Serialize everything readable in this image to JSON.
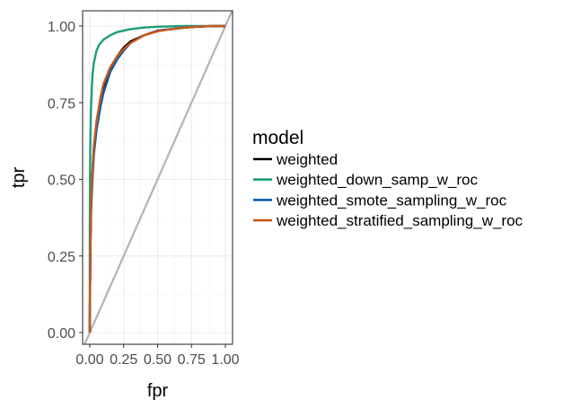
{
  "chart_data": {
    "type": "line",
    "xlabel": "fpr",
    "ylabel": "tpr",
    "xlim": [
      0,
      1
    ],
    "ylim": [
      0,
      1
    ],
    "x_ticks": [
      0,
      0.25,
      0.5,
      0.75,
      1
    ],
    "x_tick_labels": [
      "0.00",
      "0.25",
      "0.50",
      "0.75",
      "1.00"
    ],
    "y_ticks": [
      0,
      0.25,
      0.5,
      0.75,
      1
    ],
    "y_tick_labels": [
      "0.00",
      "0.25",
      "0.50",
      "0.75",
      "1.00"
    ],
    "grid": true,
    "legend": {
      "title": "model",
      "position": "right"
    },
    "reference_line": {
      "x": [
        0,
        1
      ],
      "y": [
        0,
        1
      ],
      "color": "#b3b3b3"
    },
    "series": [
      {
        "name": "weighted",
        "color": "#000000",
        "x": [
          0,
          0,
          0.005,
          0.01,
          0.02,
          0.03,
          0.05,
          0.08,
          0.1,
          0.15,
          0.2,
          0.25,
          0.3,
          0.4,
          0.5,
          0.6,
          0.7,
          0.8,
          0.9,
          1
        ],
        "y": [
          0,
          0.05,
          0.3,
          0.42,
          0.52,
          0.6,
          0.68,
          0.76,
          0.8,
          0.86,
          0.9,
          0.93,
          0.95,
          0.97,
          0.985,
          0.99,
          0.995,
          0.998,
          1,
          1
        ]
      },
      {
        "name": "weighted_down_samp_w_roc",
        "color": "#1b9e77",
        "x": [
          0,
          0,
          0.003,
          0.008,
          0.015,
          0.02,
          0.03,
          0.05,
          0.07,
          0.1,
          0.15,
          0.2,
          0.3,
          0.4,
          0.5,
          0.7,
          1
        ],
        "y": [
          0,
          0.35,
          0.6,
          0.72,
          0.8,
          0.84,
          0.88,
          0.92,
          0.94,
          0.955,
          0.97,
          0.98,
          0.99,
          0.995,
          0.998,
          1,
          1
        ]
      },
      {
        "name": "weighted_smote_sampling_w_roc",
        "color": "#0a5ca8",
        "x": [
          0,
          0,
          0.005,
          0.01,
          0.02,
          0.03,
          0.05,
          0.08,
          0.1,
          0.15,
          0.2,
          0.25,
          0.3,
          0.4,
          0.5,
          0.6,
          0.7,
          0.8,
          0.9,
          1
        ],
        "y": [
          0,
          0.05,
          0.28,
          0.4,
          0.5,
          0.58,
          0.66,
          0.74,
          0.78,
          0.85,
          0.89,
          0.92,
          0.945,
          0.97,
          0.985,
          0.99,
          0.995,
          0.998,
          1,
          1
        ]
      },
      {
        "name": "weighted_stratified_sampling_w_roc",
        "color": "#c8571a",
        "x": [
          0,
          0,
          0.005,
          0.01,
          0.02,
          0.03,
          0.05,
          0.08,
          0.1,
          0.15,
          0.2,
          0.25,
          0.3,
          0.4,
          0.5,
          0.6,
          0.7,
          0.8,
          0.9,
          1
        ],
        "y": [
          0,
          0.05,
          0.31,
          0.43,
          0.53,
          0.61,
          0.69,
          0.77,
          0.81,
          0.865,
          0.9,
          0.925,
          0.945,
          0.97,
          0.983,
          0.99,
          0.995,
          0.998,
          1,
          1
        ]
      }
    ]
  }
}
